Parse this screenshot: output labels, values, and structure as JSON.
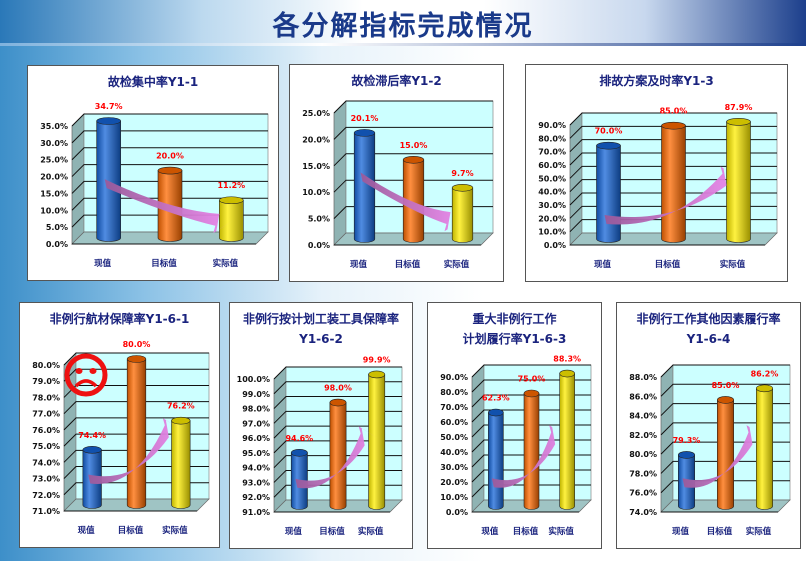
{
  "page_title": "各分解指标完成情况",
  "colors": {
    "current": "#1565d8",
    "target": "#ff6a00",
    "actual": "#ffee00",
    "label": "#ff0000",
    "title": "#1a237e",
    "arrow": "#ee88ee",
    "wall": "#ccffff"
  },
  "chart_data": [
    {
      "type": "bar",
      "style": "3d-cylinder",
      "title": "故检集中率Y1-1",
      "categories": [
        "现值",
        "目标值",
        "实际值"
      ],
      "values": [
        34.7,
        20.0,
        11.2
      ],
      "labels": [
        "34.7%",
        "20.0%",
        "11.2%"
      ],
      "ylim": [
        0,
        35
      ],
      "ystep": 5,
      "yticks": [
        "0.0%",
        "5.0%",
        "10.0%",
        "15.0%",
        "20.0%",
        "25.0%",
        "30.0%",
        "35.0%"
      ],
      "grid": true,
      "trend_arrow": "down"
    },
    {
      "type": "bar",
      "style": "3d-cylinder",
      "title": "故检滞后率Y1-2",
      "categories": [
        "现值",
        "目标值",
        "实际值"
      ],
      "values": [
        20.1,
        15.0,
        9.7
      ],
      "labels": [
        "20.1%",
        "15.0%",
        "9.7%"
      ],
      "ylim": [
        0,
        25
      ],
      "ystep": 5,
      "yticks": [
        "0.0%",
        "5.0%",
        "10.0%",
        "15.0%",
        "20.0%",
        "25.0%"
      ],
      "grid": true,
      "trend_arrow": "down"
    },
    {
      "type": "bar",
      "style": "3d-cylinder",
      "title": "排故方案及时率Y1-3",
      "categories": [
        "现值",
        "目标值",
        "实际值"
      ],
      "values": [
        70.0,
        85.0,
        87.9
      ],
      "labels": [
        "70.0%",
        "85.0%",
        "87.9%"
      ],
      "ylim": [
        0,
        90
      ],
      "ystep": 10,
      "yticks": [
        "0.0%",
        "10.0%",
        "20.0%",
        "30.0%",
        "40.0%",
        "50.0%",
        "60.0%",
        "70.0%",
        "80.0%",
        "90.0%"
      ],
      "grid": true,
      "trend_arrow": "up"
    },
    {
      "type": "bar",
      "style": "3d-cylinder",
      "title": "非例行航材保障率Y1-6-1",
      "categories": [
        "现值",
        "目标值",
        "实际值"
      ],
      "values": [
        74.4,
        80.0,
        76.2
      ],
      "labels": [
        "74.4%",
        "80.0%",
        "76.2%"
      ],
      "ylim": [
        71,
        80
      ],
      "ystep": 1,
      "yticks": [
        "71.0%",
        "72.0%",
        "73.0%",
        "74.0%",
        "75.0%",
        "76.0%",
        "77.0%",
        "78.0%",
        "79.0%",
        "80.0%"
      ],
      "grid": true,
      "trend_arrow": "up",
      "annotation_icon": "sad-face"
    },
    {
      "type": "bar",
      "style": "3d-cylinder",
      "title": "非例行按计划工装工具保障率\nY1-6-2",
      "categories": [
        "现值",
        "目标值",
        "实际值"
      ],
      "values": [
        94.6,
        98.0,
        99.9
      ],
      "labels": [
        "94.6%",
        "98.0%",
        "99.9%"
      ],
      "ylim": [
        91,
        100
      ],
      "ystep": 1,
      "yticks": [
        "91.0%",
        "92.0%",
        "93.0%",
        "94.0%",
        "95.0%",
        "96.0%",
        "97.0%",
        "98.0%",
        "99.0%",
        "100.0%"
      ],
      "grid": true,
      "trend_arrow": "up"
    },
    {
      "type": "bar",
      "style": "3d-cylinder",
      "title": "重大非例行工作\n计划履行率Y1-6-3",
      "categories": [
        "现值",
        "目标值",
        "实际值"
      ],
      "values": [
        62.3,
        75.0,
        88.3
      ],
      "labels": [
        "62.3%",
        "75.0%",
        "88.3%"
      ],
      "ylim": [
        0,
        90
      ],
      "ystep": 10,
      "yticks": [
        "0.0%",
        "10.0%",
        "20.0%",
        "30.0%",
        "40.0%",
        "50.0%",
        "60.0%",
        "70.0%",
        "80.0%",
        "90.0%"
      ],
      "grid": true,
      "trend_arrow": "up"
    },
    {
      "type": "bar",
      "style": "3d-cylinder",
      "title": "非例行工作其他因素履行率\nY1-6-4",
      "categories": [
        "现值",
        "目标值",
        "实际值"
      ],
      "values": [
        79.3,
        85.0,
        86.2
      ],
      "labels": [
        "79.3%",
        "85.0%",
        "86.2%"
      ],
      "ylim": [
        74,
        88
      ],
      "ystep": 2,
      "yticks": [
        "74.0%",
        "76.0%",
        "78.0%",
        "80.0%",
        "82.0%",
        "84.0%",
        "86.0%",
        "88.0%"
      ],
      "grid": true,
      "trend_arrow": "up"
    }
  ]
}
